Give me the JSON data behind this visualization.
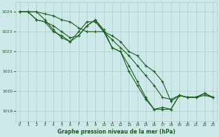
{
  "title": "Graphe pression niveau de la mer (hPa)",
  "bg_color": "#cce8e8",
  "grid_color": "#aacccc",
  "line_color": "#1a5c1a",
  "label_color": "#1a5c1a",
  "xlim": [
    -0.5,
    23.5
  ],
  "ylim": [
    1018.5,
    1024.5
  ],
  "yticks": [
    1019,
    1020,
    1021,
    1022,
    1023,
    1024
  ],
  "xticks": [
    0,
    1,
    2,
    3,
    4,
    5,
    6,
    7,
    8,
    9,
    10,
    11,
    12,
    13,
    14,
    15,
    16,
    17,
    18,
    19,
    20,
    21,
    22,
    23
  ],
  "series": [
    [
      1024.0,
      1024.0,
      1024.0,
      1023.9,
      1023.8,
      1023.6,
      1023.5,
      1023.2,
      1023.0,
      1023.0,
      1023.0,
      1022.6,
      1022.2,
      1021.8,
      1021.3,
      1020.8,
      1020.3,
      1019.7,
      1019.6,
      1019.8,
      1019.7,
      1019.7,
      1019.8,
      1019.7
    ],
    [
      1024.0,
      1024.0,
      1023.6,
      1023.5,
      1023.3,
      1023.0,
      1022.7,
      1022.8,
      1023.3,
      1023.6,
      1023.1,
      1022.2,
      1022.0,
      1021.0,
      1020.3,
      1019.6,
      1019.1,
      1019.2,
      1019.1,
      1019.8,
      1019.7,
      1019.7,
      1019.9,
      1019.7
    ],
    [
      1024.0,
      1024.0,
      1023.6,
      1023.5,
      1023.0,
      1022.8,
      1022.5,
      1022.8,
      1023.3,
      1023.6,
      1023.0,
      1022.2,
      1022.0,
      1021.3,
      1020.5,
      1019.7,
      1019.1,
      1019.1,
      1019.1,
      1019.8,
      1019.7,
      1019.7,
      1019.9,
      1019.7
    ],
    [
      1024.0,
      1024.0,
      1024.0,
      1023.6,
      1023.1,
      1022.7,
      1022.5,
      1023.0,
      1023.5,
      1023.5,
      1023.0,
      1022.8,
      1022.5,
      1022.0,
      1021.8,
      1021.3,
      1021.0,
      1020.5,
      1019.5,
      1019.8,
      1019.7,
      1019.7,
      1019.9,
      1019.7
    ]
  ]
}
